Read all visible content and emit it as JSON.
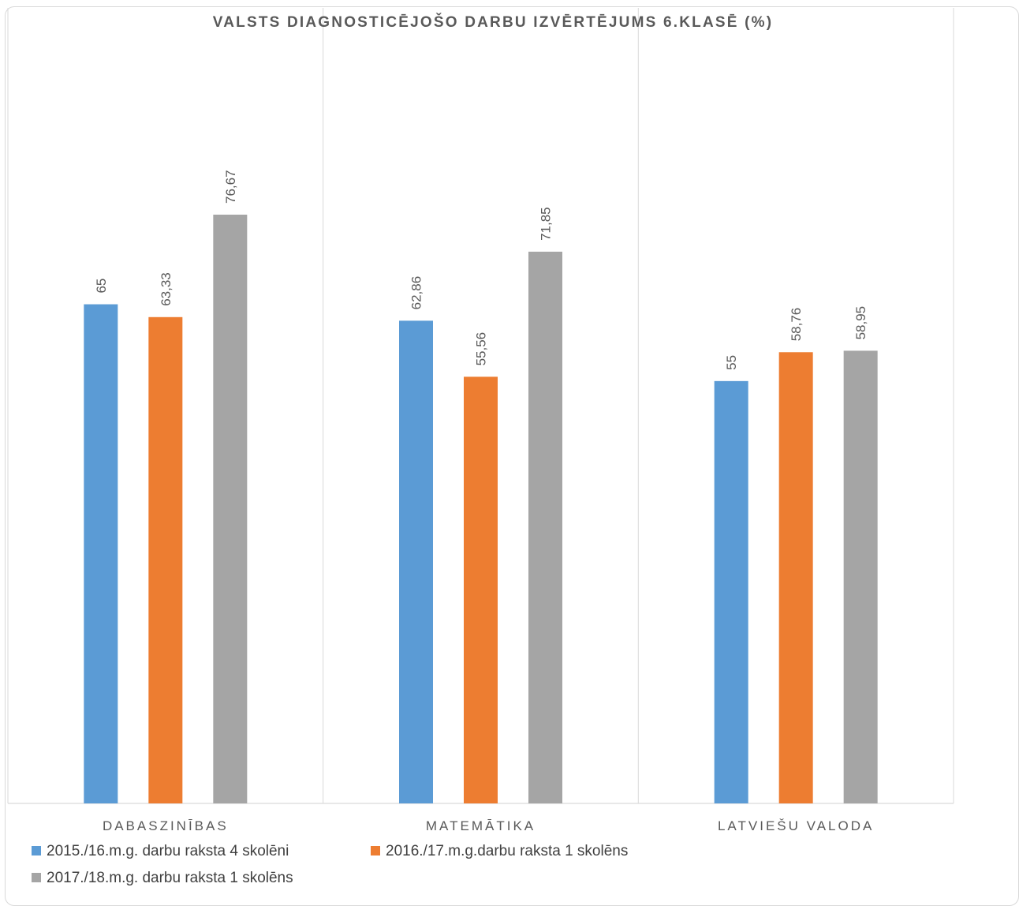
{
  "chart_data": {
    "type": "bar",
    "title": "VALSTS DIAGNOSTICĒJOŠO DARBU IZVĒRTĒJUMS 6.KLASĒ (%)",
    "categories": [
      "DABASZINĪBAS",
      "MATEMĀTIKA",
      "LATVIEŠU VALODA"
    ],
    "series": [
      {
        "name": "2015./16.m.g. darbu raksta 4 skolēni",
        "values": [
          65,
          62.86,
          55
        ],
        "labels": [
          "65",
          "62,86",
          "55"
        ],
        "color": "#5b9bd5"
      },
      {
        "name": "2016./17.m.g.darbu raksta 1 skolēns",
        "values": [
          63.33,
          55.56,
          58.76
        ],
        "labels": [
          "63,33",
          "55,56",
          "58,76"
        ],
        "color": "#ed7d31"
      },
      {
        "name": "2017./18.m.g. darbu raksta 1 skolēns",
        "values": [
          76.67,
          71.85,
          58.95
        ],
        "labels": [
          "76,67",
          "71,85",
          "58,95"
        ],
        "color": "#a5a5a5"
      }
    ],
    "ylim": [
      0,
      100
    ],
    "grid": false,
    "legend_position": "bottom-left"
  }
}
